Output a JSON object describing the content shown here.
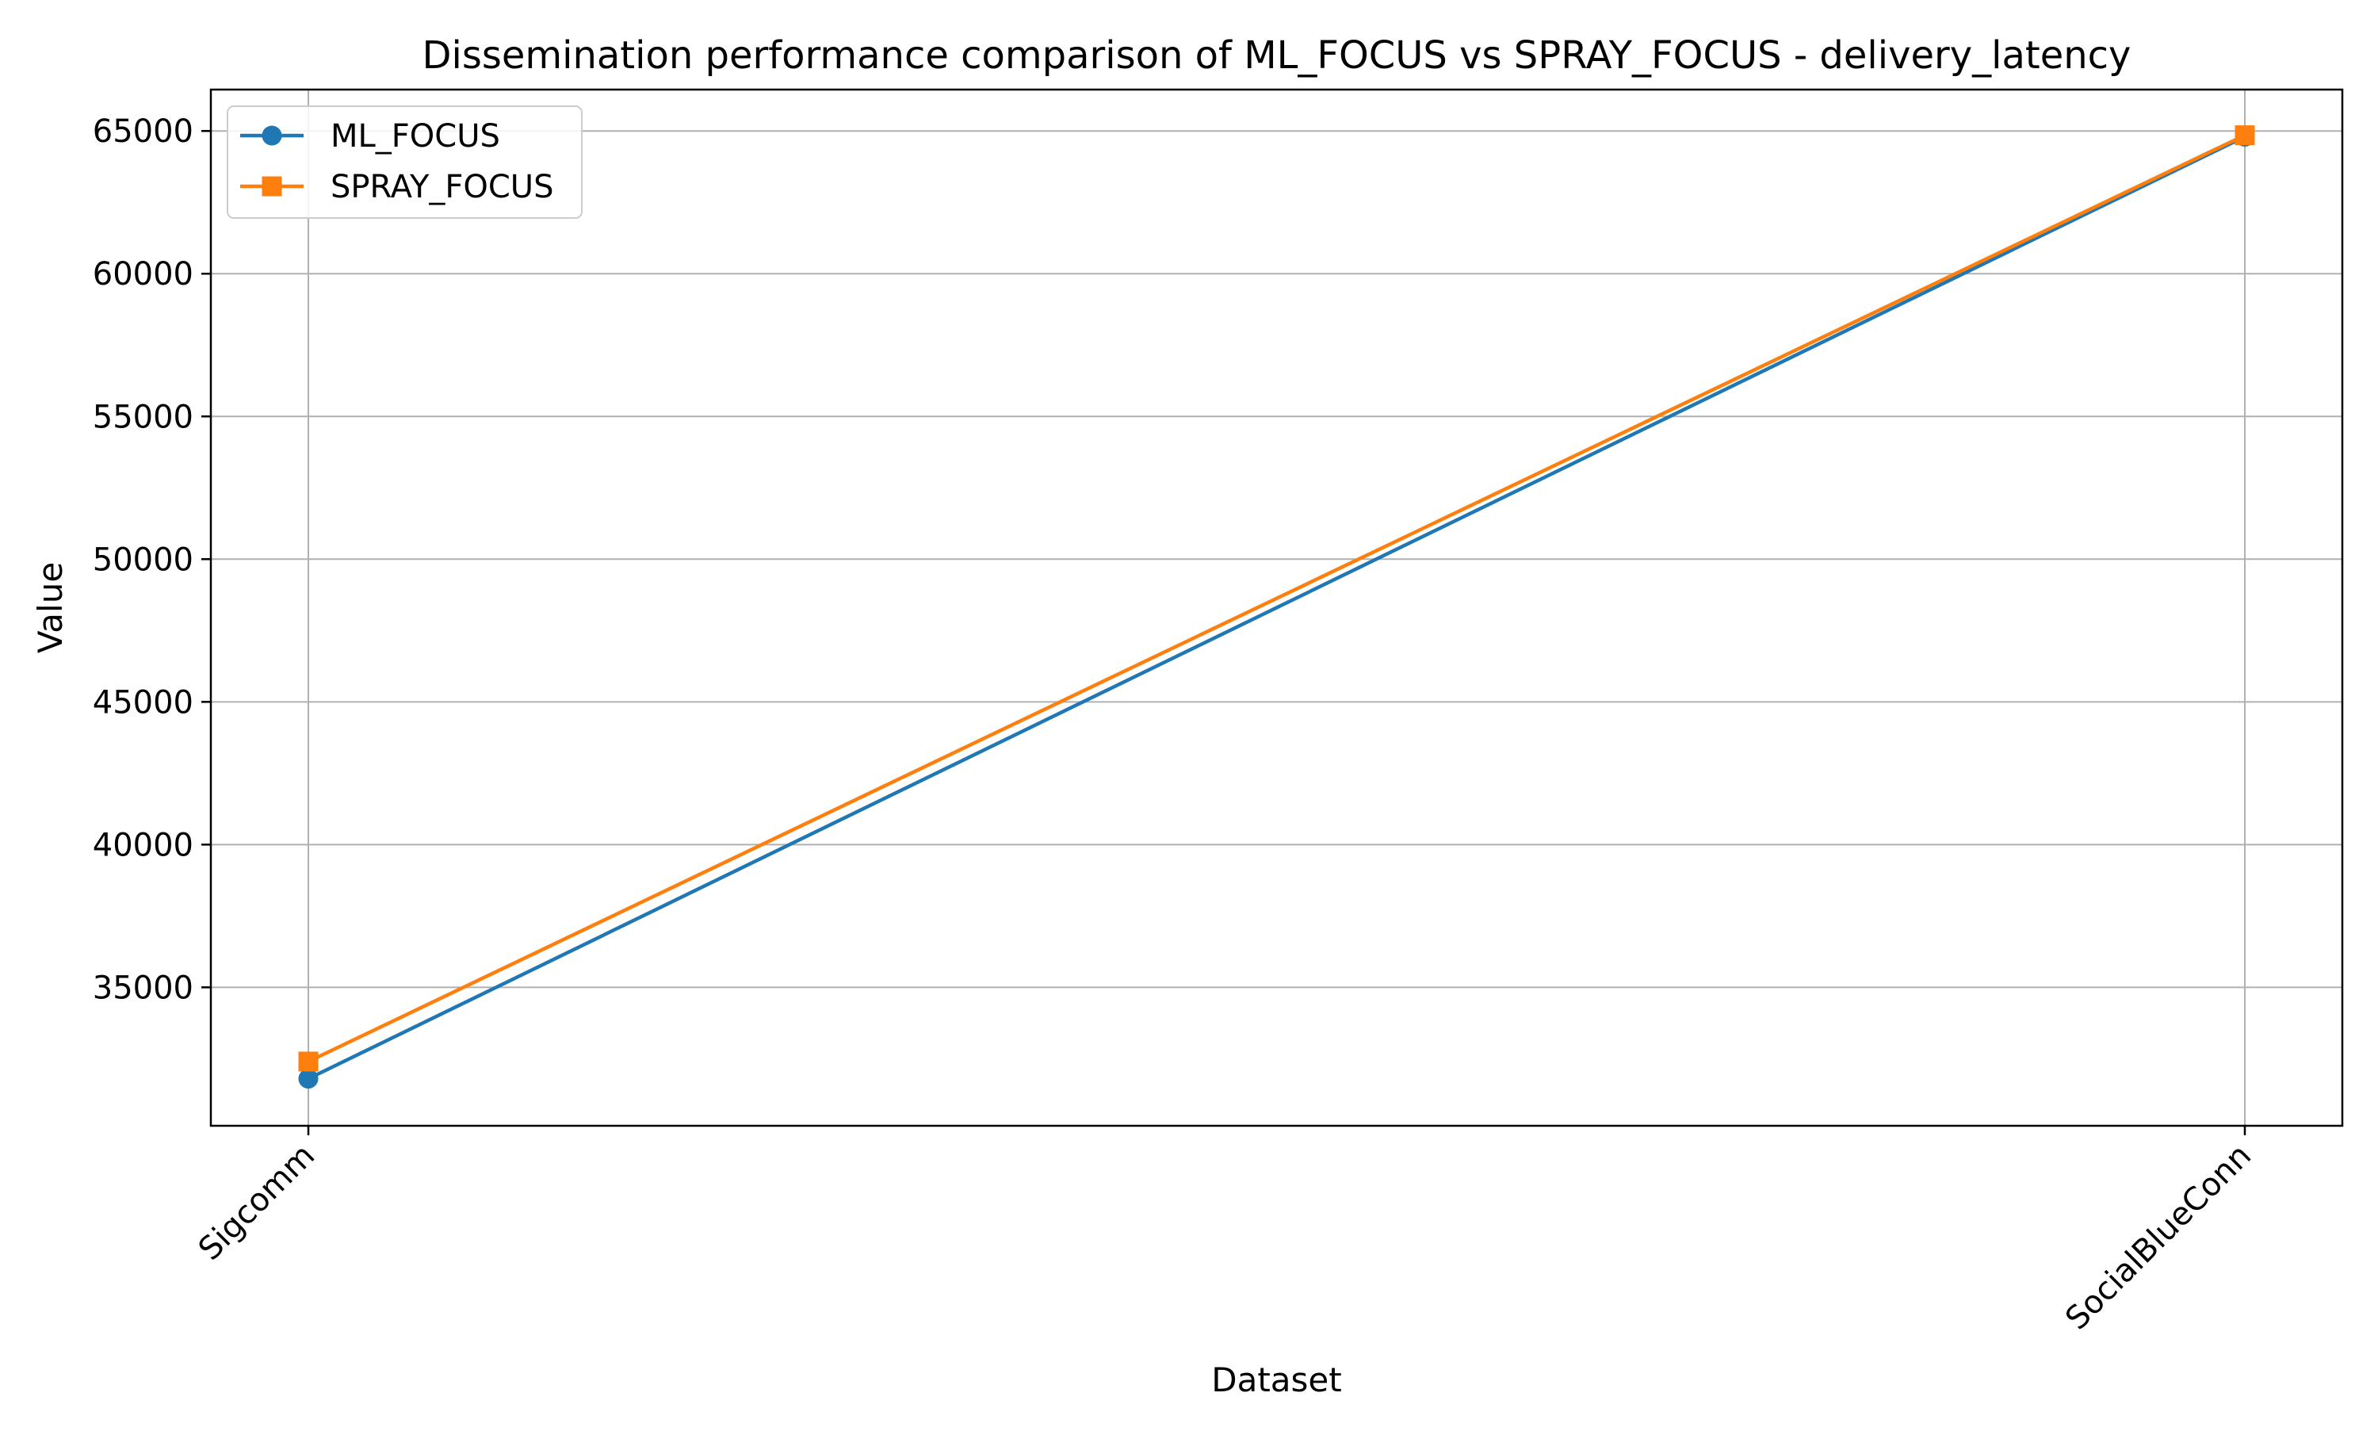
{
  "chart_data": {
    "type": "line",
    "title": "Dissemination performance comparison of ML_FOCUS vs SPRAY_FOCUS - delivery_latency",
    "xlabel": "Dataset",
    "ylabel": "Value",
    "categories": [
      "Sigcomm",
      "SocialBlueConn"
    ],
    "series": [
      {
        "name": "ML_FOCUS",
        "values": [
          31800,
          64800
        ],
        "color": "#1f77b4",
        "marker": "circle"
      },
      {
        "name": "SPRAY_FOCUS",
        "values": [
          32400,
          64850
        ],
        "color": "#ff7f0e",
        "marker": "square"
      }
    ],
    "yticks": [
      35000,
      40000,
      45000,
      50000,
      55000,
      60000,
      65000
    ],
    "ylim": [
      30150,
      66450
    ],
    "grid": true,
    "legend_position": "top-left",
    "x_tick_rotation": -45
  }
}
